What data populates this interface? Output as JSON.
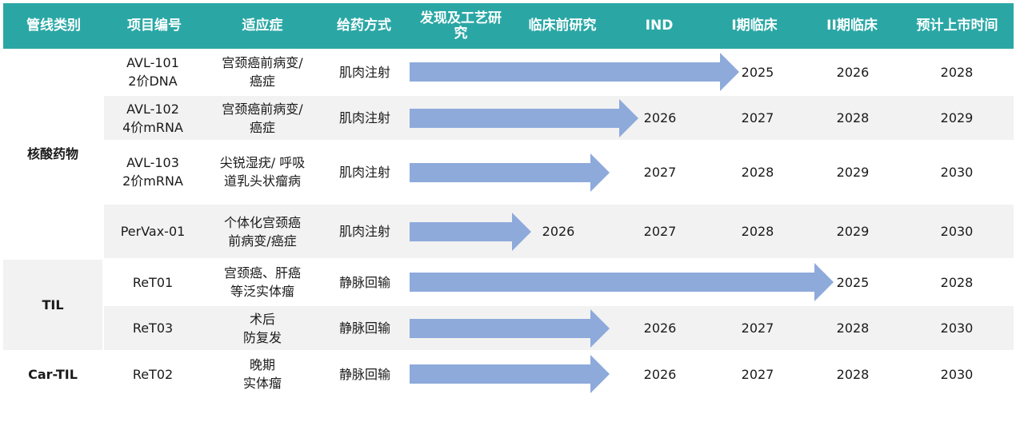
{
  "header": {
    "category": "管线类别",
    "code": "项目编号",
    "indication": "适应症",
    "route": "给药方式",
    "discovery": "发现及工艺研究",
    "preclinical": "临床前研究",
    "ind": "IND",
    "phase1": "I期临床",
    "phase2": "II期临床",
    "launch": "预计上市时间"
  },
  "categories": {
    "nucleic": "核酸药物",
    "til": "TIL",
    "cartil": "Car-TIL"
  },
  "rows": [
    {
      "code1": "AVL-101",
      "code2": "2价DNA",
      "ind1": "宫颈癌前病变/",
      "ind2": "癌症",
      "route": "肌肉注射",
      "stage": "phase1",
      "y1": "2025",
      "y2": "2026",
      "y3": "2028"
    },
    {
      "code1": "AVL-102",
      "code2": "4价mRNA",
      "ind1": "宫颈癌前病变/",
      "ind2": "癌症",
      "route": "肌肉注射",
      "stage": "ind",
      "y1": "2026",
      "y2": "2027",
      "y3": "2028",
      "y4": "2029"
    },
    {
      "code1": "AVL-103",
      "code2": "2价mRNA",
      "ind1": "尖锐湿疣/ 呼吸",
      "ind2": "道乳头状瘤病",
      "route": "肌肉注射",
      "stage": "ind",
      "y1": "2027",
      "y2": "2028",
      "y3": "2029",
      "y4": "2030"
    },
    {
      "code1": "PerVax-01",
      "ind1": "个体化宫颈癌",
      "ind2": "前病变/癌症",
      "route": "肌肉注射",
      "stage": "preclinical",
      "y0": "2026",
      "y1": "2027",
      "y2": "2028",
      "y3": "2029",
      "y4": "2030"
    },
    {
      "code1": "ReT01",
      "ind1": "宫颈癌、肝癌",
      "ind2": "等泛实体瘤",
      "route": "静脉回输",
      "stage": "phase2",
      "y1": "2025",
      "y2": "2028"
    },
    {
      "code1": "ReT03",
      "ind1": "术后",
      "ind2": "防复发",
      "route": "静脉回输",
      "stage": "ind",
      "y1": "2026",
      "y2": "2027",
      "y3": "2028",
      "y4": "2030"
    },
    {
      "code1": "ReT02",
      "ind1": "晚期",
      "ind2": "实体瘤",
      "route": "静脉回输",
      "stage": "ind",
      "y1": "2026",
      "y2": "2027",
      "y3": "2028",
      "y4": "2030"
    }
  ],
  "colors": {
    "header_bg": "#2aa7a5",
    "arrow": "#8eaadb",
    "row_gray": "#f2f2f2"
  }
}
